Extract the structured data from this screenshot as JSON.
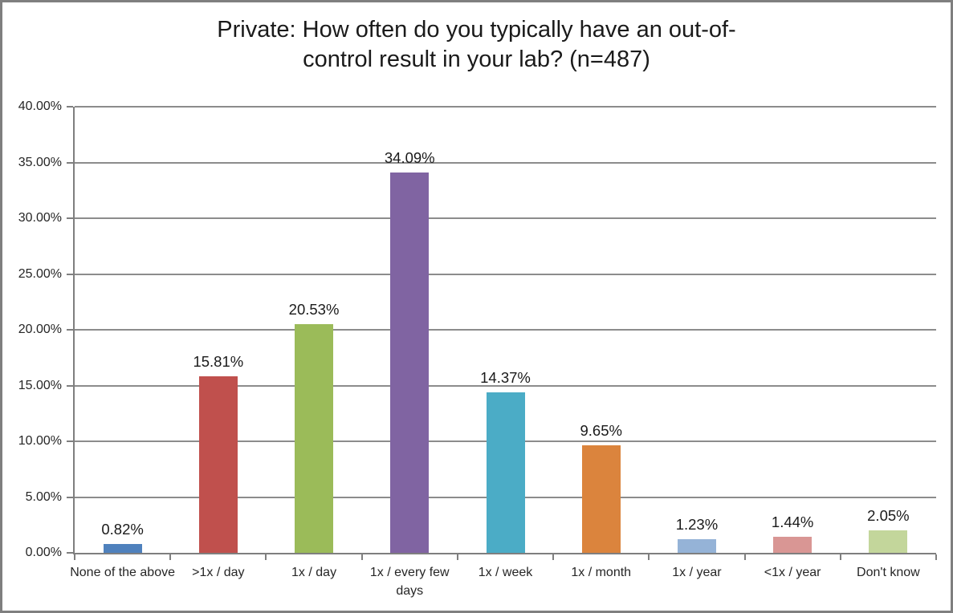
{
  "window": {
    "background": "#FFFFFF",
    "border_color": "#7F7F7F"
  },
  "chart_data": {
    "type": "bar",
    "title": "Private: How often do you typically have an out-of-control result in your lab? (n=487)",
    "title_lines": [
      "Private: How often do you typically have an out-of-",
      "control result in your lab? (n=487)"
    ],
    "categories": [
      "None of the above",
      ">1x / day",
      "1x / day",
      "1x / every few days",
      "1x / week",
      "1x / month",
      "1x / year",
      "<1x / year",
      "Don't know"
    ],
    "values": [
      0.82,
      15.81,
      20.53,
      34.09,
      14.37,
      9.65,
      1.23,
      1.44,
      2.05
    ],
    "data_labels": [
      "0.82%",
      "15.81%",
      "20.53%",
      "34.09%",
      "14.37%",
      "9.65%",
      "1.23%",
      "1.44%",
      "2.05%"
    ],
    "bar_colors": [
      "#4F81BD",
      "#C0504D",
      "#9BBB59",
      "#8064A2",
      "#4BACC6",
      "#DB843D",
      "#95B3D7",
      "#D99694",
      "#C3D69B"
    ],
    "xlabel": "",
    "ylabel": "",
    "ylim": [
      0,
      40
    ],
    "ytick_step": 5,
    "ytick_labels": [
      "0.00%",
      "5.00%",
      "10.00%",
      "15.00%",
      "20.00%",
      "25.00%",
      "30.00%",
      "35.00%",
      "40.00%"
    ],
    "grid": true,
    "legend": "none",
    "gridline_color": "#8C8C8C",
    "axis_color": "#7F7F7F",
    "text_color": "#262626"
  }
}
